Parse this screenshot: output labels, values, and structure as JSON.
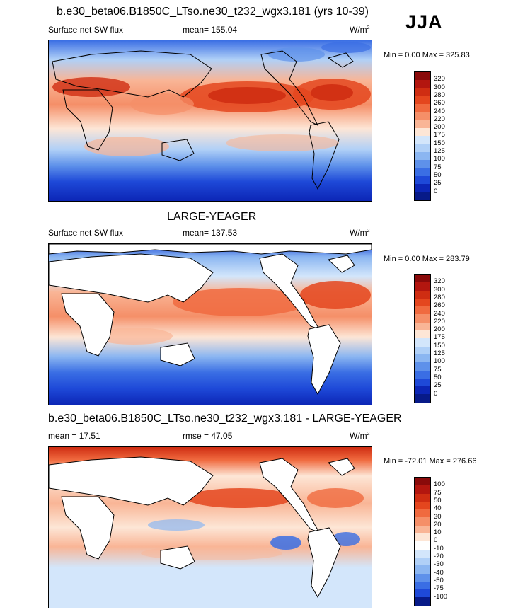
{
  "season": "JJA",
  "panels": [
    {
      "title": "b.e30_beta06.B1850C_LTso.ne30_t232_wgx3.181 (yrs 10-39)",
      "left_label": "Surface net SW flux",
      "mid_label": "mean= 155.04",
      "units_base": "W/m",
      "units_exp": "2",
      "minmax": "Min =   0.00 Max = 325.83",
      "land_filled": true,
      "levels": [
        "320",
        "300",
        "280",
        "260",
        "240",
        "220",
        "200",
        "175",
        "150",
        "125",
        "100",
        "75",
        "50",
        "25",
        "0"
      ],
      "colors": [
        "#8a0a0a",
        "#b3160f",
        "#cf2d12",
        "#e4461e",
        "#f06a3f",
        "#f58f68",
        "#f9b596",
        "#fde6d6",
        "#d3e6fb",
        "#b0d0f7",
        "#8bb6f1",
        "#5e91ea",
        "#3a6ee4",
        "#1e49d8",
        "#0c26b6",
        "#071a88"
      ]
    },
    {
      "title": "LARGE-YEAGER",
      "left_label": "Surface net SW flux",
      "mid_label": "mean= 137.53",
      "units_base": "W/m",
      "units_exp": "2",
      "minmax": "Min =   0.00 Max = 283.79",
      "land_filled": false,
      "levels": [
        "320",
        "300",
        "280",
        "260",
        "240",
        "220",
        "200",
        "175",
        "150",
        "125",
        "100",
        "75",
        "50",
        "25",
        "0"
      ],
      "colors": [
        "#8a0a0a",
        "#b3160f",
        "#cf2d12",
        "#e4461e",
        "#f06a3f",
        "#f58f68",
        "#f9b596",
        "#fde6d6",
        "#d3e6fb",
        "#b0d0f7",
        "#8bb6f1",
        "#5e91ea",
        "#3a6ee4",
        "#1e49d8",
        "#0c26b6",
        "#071a88"
      ]
    },
    {
      "title": "b.e30_beta06.B1850C_LTso.ne30_t232_wgx3.181 - LARGE-YEAGER",
      "left_label": "mean =  17.51",
      "mid_label": "rmse =  47.05",
      "units_base": "W/m",
      "units_exp": "2",
      "minmax": "Min = -72.01 Max = 276.66",
      "land_filled": false,
      "levels": [
        "100",
        "75",
        "50",
        "40",
        "30",
        "20",
        "10",
        "0",
        "-10",
        "-20",
        "-30",
        "-40",
        "-50",
        "-75",
        "-100"
      ],
      "colors": [
        "#8a0a0a",
        "#b3160f",
        "#cf2d12",
        "#e4461e",
        "#f06a3f",
        "#f58f68",
        "#f9b596",
        "#fde6d6",
        "#ffffff",
        "#d3e6fb",
        "#b0d0f7",
        "#8bb6f1",
        "#5e91ea",
        "#3a6ee4",
        "#1e49d8",
        "#071a88"
      ]
    }
  ]
}
